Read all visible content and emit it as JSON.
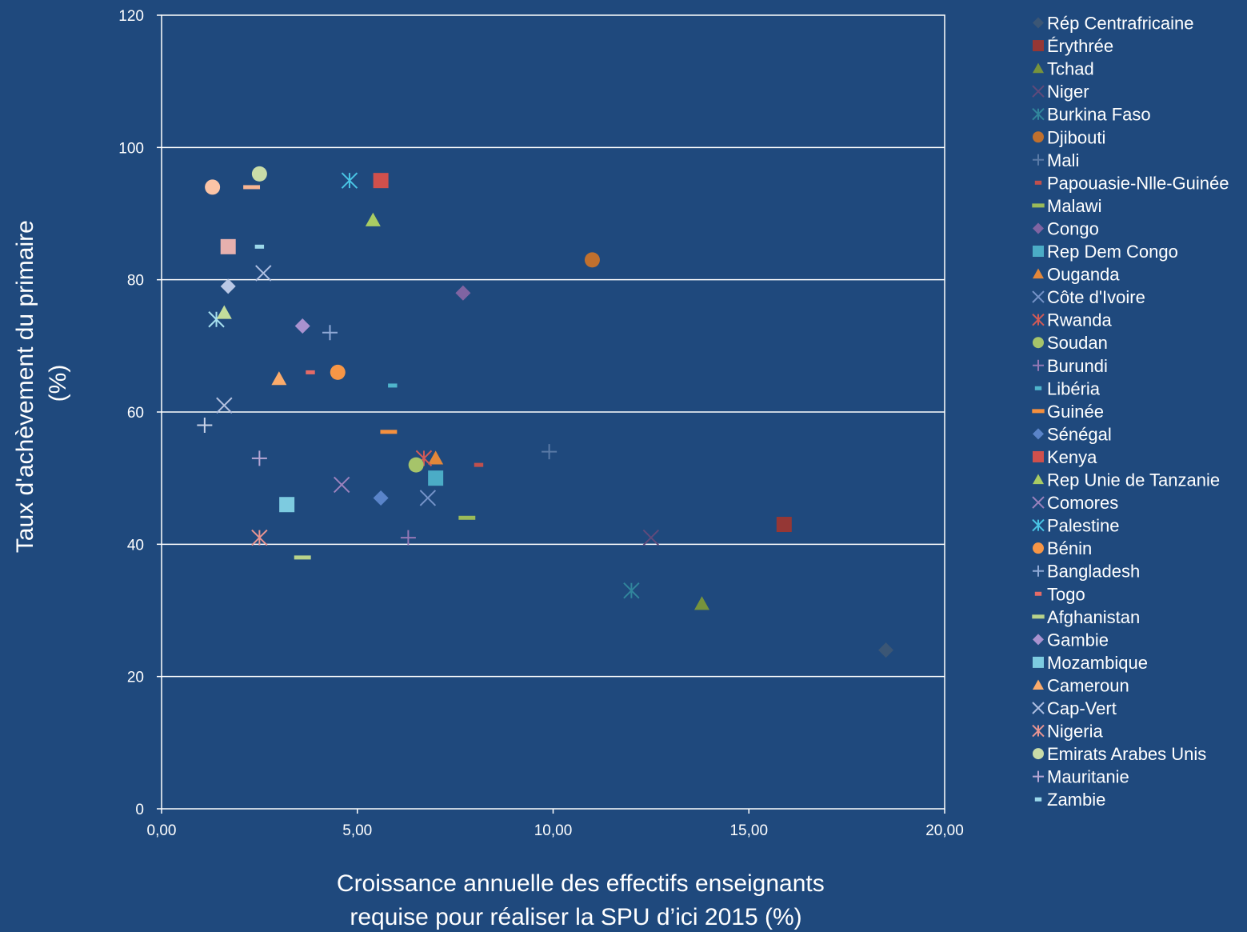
{
  "chart_data": {
    "type": "scatter",
    "xlabel_lines": [
      "Croissance annuelle des effectifs enseignants",
      "requise pour réaliser la SPU d’ici 2015  (%)"
    ],
    "ylabel_lines": [
      "Taux d'achèvement du primaire",
      "(%)"
    ],
    "xlim": [
      0,
      20
    ],
    "ylim": [
      0,
      120
    ],
    "x_ticks": [
      "0,00",
      "5,00",
      "10,00",
      "15,00",
      "20,00"
    ],
    "y_ticks": [
      "0",
      "20",
      "40",
      "60",
      "80",
      "100",
      "120"
    ],
    "grid": "horizontal",
    "legend_position": "right",
    "series": [
      {
        "name": "Rép Centrafricaine",
        "marker": "diamond",
        "color": "#3b5675",
        "x": 18.5,
        "y": 24
      },
      {
        "name": "Érythrée",
        "marker": "square",
        "color": "#953735",
        "x": 15.9,
        "y": 43
      },
      {
        "name": "Tchad",
        "marker": "triangle",
        "color": "#77933c",
        "x": 13.8,
        "y": 31
      },
      {
        "name": "Niger",
        "marker": "x",
        "color": "#604a7b",
        "x": 12.5,
        "y": 41
      },
      {
        "name": "Burkina Faso",
        "marker": "star",
        "color": "#31859c",
        "x": 12.0,
        "y": 33
      },
      {
        "name": "Djibouti",
        "marker": "circle",
        "color": "#c0702e",
        "x": 11.0,
        "y": 83
      },
      {
        "name": "Mali",
        "marker": "plus",
        "color": "#5a7aa6",
        "x": 9.9,
        "y": 54
      },
      {
        "name": "Papouasie-Nlle-Guinée",
        "marker": "shortdash",
        "color": "#c0504d",
        "x": 8.1,
        "y": 52
      },
      {
        "name": "Malawi",
        "marker": "longdash",
        "color": "#9bbb59",
        "x": 7.8,
        "y": 44
      },
      {
        "name": "Congo",
        "marker": "diamond",
        "color": "#8064a2",
        "x": 7.7,
        "y": 78
      },
      {
        "name": "Rep Dem Congo",
        "marker": "square",
        "color": "#4bacc6",
        "x": 7.0,
        "y": 50
      },
      {
        "name": "Ouganda",
        "marker": "triangle",
        "color": "#e3873a",
        "x": 7.0,
        "y": 53
      },
      {
        "name": "Côte d'Ivoire",
        "marker": "x",
        "color": "#7593c8",
        "x": 6.8,
        "y": 47
      },
      {
        "name": "Rwanda",
        "marker": "star",
        "color": "#d25a56",
        "x": 6.7,
        "y": 53
      },
      {
        "name": "Soudan",
        "marker": "circle",
        "color": "#a6c46a",
        "x": 6.5,
        "y": 52
      },
      {
        "name": "Burundi",
        "marker": "plus",
        "color": "#9478b5",
        "x": 6.3,
        "y": 41
      },
      {
        "name": "Libéria",
        "marker": "shortdash",
        "color": "#4fb5cc",
        "x": 5.9,
        "y": 64
      },
      {
        "name": "Guinée",
        "marker": "longdash",
        "color": "#f5903e",
        "x": 5.8,
        "y": 57
      },
      {
        "name": "Sénégal",
        "marker": "diamond",
        "color": "#5a84c9",
        "x": 5.6,
        "y": 47
      },
      {
        "name": "Kenya",
        "marker": "square",
        "color": "#d0504c",
        "x": 5.6,
        "y": 95
      },
      {
        "name": "Rep Unie de Tanzanie",
        "marker": "triangle",
        "color": "#a9cc63",
        "x": 5.4,
        "y": 89
      },
      {
        "name": "Comores",
        "marker": "x",
        "color": "#9b82bd",
        "x": 4.6,
        "y": 49
      },
      {
        "name": "Palestine",
        "marker": "star",
        "color": "#49c4e4",
        "x": 4.8,
        "y": 95
      },
      {
        "name": "Bénin",
        "marker": "circle",
        "color": "#f79646",
        "x": 4.5,
        "y": 66
      },
      {
        "name": "Bangladesh",
        "marker": "plus",
        "color": "#8fa9d6",
        "x": 4.3,
        "y": 72
      },
      {
        "name": "Togo",
        "marker": "shortdash",
        "color": "#e56b67",
        "x": 3.8,
        "y": 66
      },
      {
        "name": "Afghanistan",
        "marker": "longdash",
        "color": "#b9d38a",
        "x": 3.6,
        "y": 38
      },
      {
        "name": "Gambie",
        "marker": "diamond",
        "color": "#a992cf",
        "x": 3.6,
        "y": 73
      },
      {
        "name": "Mozambique",
        "marker": "square",
        "color": "#7dcbe0",
        "x": 3.2,
        "y": 46
      },
      {
        "name": "Cameroun",
        "marker": "triangle",
        "color": "#fbab6b",
        "x": 3.0,
        "y": 65
      },
      {
        "name": "Cap-Vert",
        "marker": "x",
        "color": "#aebfe2",
        "x": 2.6,
        "y": 81
      },
      {
        "name": "Nigeria",
        "marker": "star",
        "color": "#e89491",
        "x": 2.5,
        "y": 41
      },
      {
        "name": "Emirats Arabes Unis",
        "marker": "circle",
        "color": "#c9dca8",
        "x": 2.5,
        "y": 96
      },
      {
        "name": "Mauritanie",
        "marker": "plus",
        "color": "#b6a6d4",
        "x": 2.5,
        "y": 53
      },
      {
        "name": "Zambie",
        "marker": "shortdash",
        "color": "#9cd8ea",
        "x": 2.5,
        "y": 85
      }
    ],
    "extra_points": [
      {
        "marker": "plus",
        "color": "#c9d3e8",
        "x": 1.1,
        "y": 58
      },
      {
        "marker": "x",
        "color": "#b3c0de",
        "x": 1.6,
        "y": 61
      },
      {
        "marker": "star",
        "color": "#a7e0ef",
        "x": 1.4,
        "y": 74
      },
      {
        "marker": "triangle",
        "color": "#c3dd9b",
        "x": 1.6,
        "y": 75
      },
      {
        "marker": "diamond",
        "color": "#b9c8e6",
        "x": 1.7,
        "y": 79
      },
      {
        "marker": "square",
        "color": "#e6b0ae",
        "x": 1.7,
        "y": 85
      },
      {
        "marker": "circle",
        "color": "#fbc4a6",
        "x": 1.3,
        "y": 94
      },
      {
        "marker": "longdash",
        "color": "#f8b592",
        "x": 2.3,
        "y": 94
      }
    ]
  }
}
